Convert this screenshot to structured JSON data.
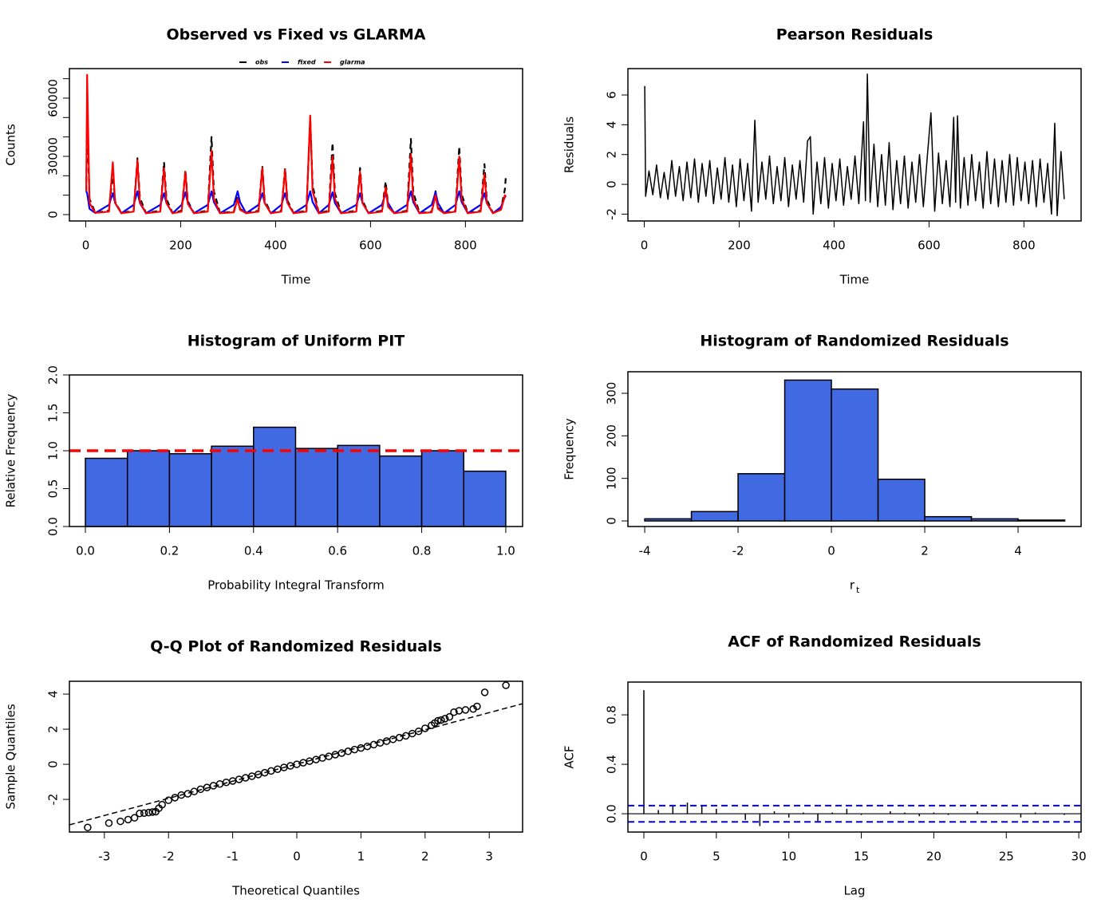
{
  "chart_data": [
    {
      "type": "line",
      "title": "Observed vs Fixed vs GLARMA",
      "x_label": "Time",
      "y_label": "Counts",
      "xlim": [
        -34.4,
        920.4
      ],
      "ylim": [
        -3290,
        75200
      ],
      "xticks": [
        0,
        200,
        400,
        600,
        800
      ],
      "yticks": [
        0,
        30000,
        60000
      ],
      "yminor_ticks": [
        10000,
        20000,
        40000,
        50000,
        70000
      ],
      "legend": "top",
      "x": [
        1,
        3,
        8,
        20,
        49,
        57,
        62,
        75,
        101,
        109,
        114,
        127,
        157,
        165,
        170,
        183,
        202,
        210,
        215,
        228,
        257,
        265,
        270,
        283,
        312,
        320,
        325,
        338,
        364,
        372,
        377,
        390,
        412,
        420,
        425,
        438,
        465,
        473,
        478,
        491,
        512,
        520,
        525,
        538,
        570,
        578,
        583,
        596,
        624,
        632,
        637,
        650,
        677,
        685,
        690,
        703,
        729,
        737,
        742,
        755,
        779,
        787,
        792,
        805,
        832,
        840,
        845,
        858,
        875,
        883,
        885
      ],
      "series": [
        {
          "name": "obs",
          "color": "#000000",
          "dashed": true,
          "values": [
            12000,
            50000,
            8000,
            1000,
            2000,
            22000,
            6600,
            800,
            2000,
            29000,
            8700,
            800,
            2000,
            27000,
            8100,
            800,
            2000,
            23000,
            6900,
            800,
            2000,
            40000,
            12000,
            800,
            1500,
            10000,
            3000,
            800,
            2000,
            25000,
            7500,
            800,
            2000,
            24000,
            7200,
            800,
            2000,
            50000,
            15000,
            800,
            2000,
            37000,
            11000,
            800,
            2000,
            24000,
            7200,
            800,
            2000,
            17000,
            5100,
            800,
            2000,
            39000,
            11700,
            800,
            1500,
            12000,
            3600,
            800,
            2000,
            35000,
            10500,
            800,
            2000,
            26000,
            7800,
            800,
            3000,
            13000,
            19000
          ]
        },
        {
          "name": "fixed",
          "color": "#0000ff",
          "values": [
            12000,
            11000,
            3000,
            800,
            5000,
            11000,
            6000,
            700,
            5000,
            12000,
            6000,
            700,
            5000,
            11000,
            6000,
            700,
            5000,
            11500,
            6000,
            700,
            5000,
            12000,
            6500,
            700,
            5000,
            12000,
            6500,
            700,
            5000,
            11000,
            6000,
            700,
            5000,
            11000,
            6000,
            700,
            5000,
            12000,
            6500,
            700,
            5000,
            11500,
            6000,
            700,
            5000,
            11000,
            6000,
            700,
            5000,
            11000,
            6000,
            700,
            5000,
            12000,
            6500,
            700,
            5000,
            11500,
            6000,
            700,
            5000,
            12000,
            6500,
            700,
            5000,
            11000,
            6000,
            700,
            4000,
            9000,
            10000
          ]
        },
        {
          "name": "glarma",
          "color": "#ff0000",
          "values": [
            12000,
            72000,
            6000,
            900,
            1500,
            27000,
            6000,
            700,
            1500,
            28000,
            6500,
            700,
            1500,
            24000,
            6000,
            700,
            1500,
            22000,
            5500,
            700,
            1500,
            33000,
            8000,
            700,
            1200,
            8000,
            2500,
            700,
            1500,
            24000,
            6000,
            700,
            1500,
            23000,
            6000,
            700,
            1500,
            51000,
            12000,
            700,
            1500,
            30000,
            8000,
            700,
            1500,
            22000,
            6000,
            700,
            1500,
            14000,
            4000,
            700,
            1500,
            31000,
            8000,
            700,
            1200,
            10000,
            3000,
            700,
            1500,
            30000,
            8000,
            700,
            1500,
            21000,
            6000,
            700,
            2500,
            10000,
            9000
          ]
        }
      ]
    },
    {
      "type": "line",
      "title": "Pearson Residuals",
      "x_label": "Time",
      "y_label": "Residuals",
      "xlim": [
        -34.4,
        920.4
      ],
      "ylim": [
        -2.46,
        7.77
      ],
      "xticks": [
        0,
        200,
        400,
        600,
        800
      ],
      "yticks": [
        -2,
        0,
        2,
        4,
        6
      ],
      "x": [
        1,
        3,
        10,
        18,
        26,
        34,
        42,
        50,
        58,
        66,
        74,
        82,
        90,
        98,
        106,
        114,
        122,
        130,
        138,
        146,
        154,
        162,
        170,
        178,
        186,
        194,
        202,
        210,
        218,
        226,
        233,
        240,
        248,
        256,
        264,
        272,
        280,
        288,
        296,
        304,
        312,
        320,
        328,
        336,
        344,
        350,
        356,
        364,
        372,
        380,
        388,
        396,
        404,
        412,
        420,
        428,
        436,
        444,
        452,
        462,
        466,
        470,
        476,
        484,
        492,
        500,
        508,
        516,
        524,
        532,
        540,
        548,
        556,
        564,
        572,
        580,
        588,
        596,
        604,
        612,
        620,
        628,
        636,
        644,
        652,
        656,
        660,
        666,
        674,
        682,
        690,
        698,
        706,
        714,
        722,
        730,
        738,
        746,
        754,
        762,
        770,
        778,
        786,
        794,
        802,
        810,
        818,
        826,
        834,
        842,
        850,
        858,
        865,
        870,
        878,
        885
      ],
      "series": [
        {
          "color": "#000000",
          "values": [
            6.6,
            -0.8,
            0.9,
            -0.7,
            1.3,
            -0.9,
            0.8,
            -1.0,
            1.6,
            -0.8,
            1.2,
            -1.1,
            1.5,
            -0.9,
            1.7,
            -1.2,
            1.4,
            -0.8,
            1.6,
            -1.3,
            1.1,
            -1.0,
            1.8,
            -1.2,
            1.3,
            -1.5,
            1.7,
            -1.1,
            1.4,
            -1.8,
            4.3,
            -1.2,
            1.5,
            -1.0,
            1.9,
            -1.3,
            1.2,
            -1.1,
            1.8,
            -1.5,
            1.3,
            -1.0,
            1.6,
            -1.2,
            2.9,
            3.2,
            -2.0,
            1.5,
            -1.3,
            1.8,
            -1.6,
            1.4,
            -1.1,
            1.7,
            -1.4,
            1.2,
            -1.0,
            1.9,
            -1.3,
            4.2,
            -1.1,
            7.4,
            -1.2,
            2.7,
            -1.5,
            2.0,
            -1.4,
            2.8,
            -1.7,
            1.6,
            -1.3,
            1.9,
            -1.6,
            1.5,
            -1.2,
            2.0,
            -1.5,
            1.7,
            4.8,
            -1.8,
            2.1,
            -1.3,
            1.6,
            -1.5,
            4.5,
            -1.2,
            4.6,
            -1.6,
            1.8,
            -1.4,
            2.0,
            -1.1,
            1.5,
            -1.6,
            2.2,
            -1.3,
            1.7,
            -1.5,
            1.6,
            -1.2,
            2.0,
            -1.4,
            1.8,
            -1.1,
            1.5,
            -1.3,
            1.6,
            -1.5,
            1.7,
            -1.2,
            1.4,
            -2.0,
            4.1,
            -2.1,
            2.2,
            -1.0
          ]
        }
      ]
    },
    {
      "type": "histogram",
      "title": "Histogram of Uniform PIT",
      "x_label": "Probability Integral Transform",
      "y_label": "Relative Frequency",
      "xlim": [
        -0.038,
        1.04
      ],
      "ylim": [
        0,
        2
      ],
      "xticks": [
        {
          "value": 0,
          "label": "0.0"
        },
        0.2,
        0.4,
        0.6,
        0.8,
        {
          "value": 1,
          "label": "1.0"
        }
      ],
      "yticks": [
        {
          "value": 0,
          "label": "0.0"
        },
        0.5,
        {
          "value": 1,
          "label": "1.0"
        },
        1.5,
        {
          "value": 2,
          "label": "2.0"
        }
      ],
      "bins": [
        0,
        0.1,
        0.2,
        0.3,
        0.4,
        0.5,
        0.6,
        0.7,
        0.8,
        0.9,
        1.0
      ],
      "values": [
        0.9,
        1.0,
        0.96,
        1.06,
        1.31,
        1.03,
        1.07,
        0.93,
        1.0,
        0.73
      ],
      "color": "#4169e1",
      "hline": {
        "value": 1,
        "color": "#ff0000"
      }
    },
    {
      "type": "histogram",
      "title": "Histogram of Randomized Residuals",
      "x_label": "r",
      "x_label_subscript": "t",
      "y_label": "Frequency",
      "xlim": [
        -4.36,
        5.35
      ],
      "ylim": [
        -13.1,
        350.6
      ],
      "xticks": [
        -4,
        -2,
        0,
        2,
        4
      ],
      "yticks": [
        0,
        100,
        200,
        300
      ],
      "bins": [
        -4,
        -3,
        -2,
        -1,
        0,
        1,
        2,
        3,
        4,
        5
      ],
      "values": [
        5,
        22,
        111,
        331,
        310,
        98,
        10,
        5,
        2
      ],
      "color": "#4169e1"
    },
    {
      "type": "scatter",
      "title": "Q-Q Plot of Randomized Residuals",
      "x_label": "Theoretical Quantiles",
      "y_label": "Sample Quantiles",
      "xlim": [
        -3.545,
        3.52
      ],
      "ylim": [
        -3.86,
        4.73
      ],
      "xticks": [
        -3,
        -2,
        -1,
        0,
        1,
        2,
        3
      ],
      "yticks": [
        -2,
        0,
        2,
        4
      ],
      "x": [
        -3.26,
        -2.93,
        -2.75,
        -2.63,
        -2.53,
        -2.45,
        -2.38,
        -2.31,
        -2.25,
        -2.2,
        -2.15,
        -2.1,
        -2.0,
        -1.9,
        -1.8,
        -1.7,
        -1.6,
        -1.5,
        -1.4,
        -1.3,
        -1.2,
        -1.1,
        -1.0,
        -0.9,
        -0.8,
        -0.7,
        -0.6,
        -0.5,
        -0.4,
        -0.3,
        -0.2,
        -0.1,
        0,
        0.1,
        0.2,
        0.3,
        0.4,
        0.5,
        0.6,
        0.7,
        0.8,
        0.9,
        1.0,
        1.1,
        1.2,
        1.3,
        1.4,
        1.5,
        1.6,
        1.7,
        1.8,
        1.9,
        2.0,
        2.1,
        2.15,
        2.2,
        2.25,
        2.31,
        2.38,
        2.45,
        2.53,
        2.63,
        2.75,
        2.81,
        2.93,
        3.26
      ],
      "values": [
        -3.6,
        -3.35,
        -3.25,
        -3.15,
        -3.05,
        -2.8,
        -2.78,
        -2.75,
        -2.72,
        -2.7,
        -2.5,
        -2.3,
        -2.05,
        -1.9,
        -1.75,
        -1.68,
        -1.55,
        -1.42,
        -1.32,
        -1.22,
        -1.12,
        -1.03,
        -0.95,
        -0.86,
        -0.77,
        -0.68,
        -0.58,
        -0.48,
        -0.38,
        -0.28,
        -0.18,
        -0.09,
        0,
        0.09,
        0.18,
        0.27,
        0.36,
        0.45,
        0.55,
        0.64,
        0.74,
        0.84,
        0.93,
        1.02,
        1.12,
        1.22,
        1.32,
        1.42,
        1.52,
        1.62,
        1.75,
        1.88,
        2.05,
        2.22,
        2.35,
        2.48,
        2.52,
        2.6,
        2.7,
        2.97,
        3.05,
        3.1,
        3.15,
        3.3,
        4.1,
        4.5
      ],
      "qqline": {
        "intercept": 0.013,
        "slope": 0.977
      }
    },
    {
      "type": "acf",
      "title": "ACF of Randomized Residuals",
      "x_label": "Lag",
      "y_label": "ACF",
      "xlim": [
        -1.1,
        30.16
      ],
      "ylim": [
        -0.148,
        1.065
      ],
      "xticks": [
        0,
        5,
        10,
        15,
        20,
        25,
        30
      ],
      "yticks": [
        {
          "value": 0,
          "label": "0.0"
        },
        0.4,
        0.8
      ],
      "x": [
        0,
        1,
        2,
        3,
        4,
        5,
        6,
        7,
        8,
        9,
        10,
        11,
        12,
        13,
        14,
        15,
        16,
        17,
        18,
        19,
        20,
        21,
        22,
        23,
        24,
        25,
        26,
        27,
        28,
        29,
        30
      ],
      "values": [
        1,
        0.03,
        0.07,
        0.09,
        0.07,
        0.04,
        0,
        -0.05,
        -0.1,
        0.02,
        -0.03,
        0.01,
        -0.06,
        0.01,
        0.04,
        -0.01,
        0,
        0.02,
        0.01,
        -0.02,
        0.01,
        -0.01,
        0,
        0.02,
        0,
        0,
        -0.03,
        0.01,
        0,
        -0.01,
        0
      ],
      "ci": 0.0659,
      "ci_color": "#0000ff"
    }
  ]
}
